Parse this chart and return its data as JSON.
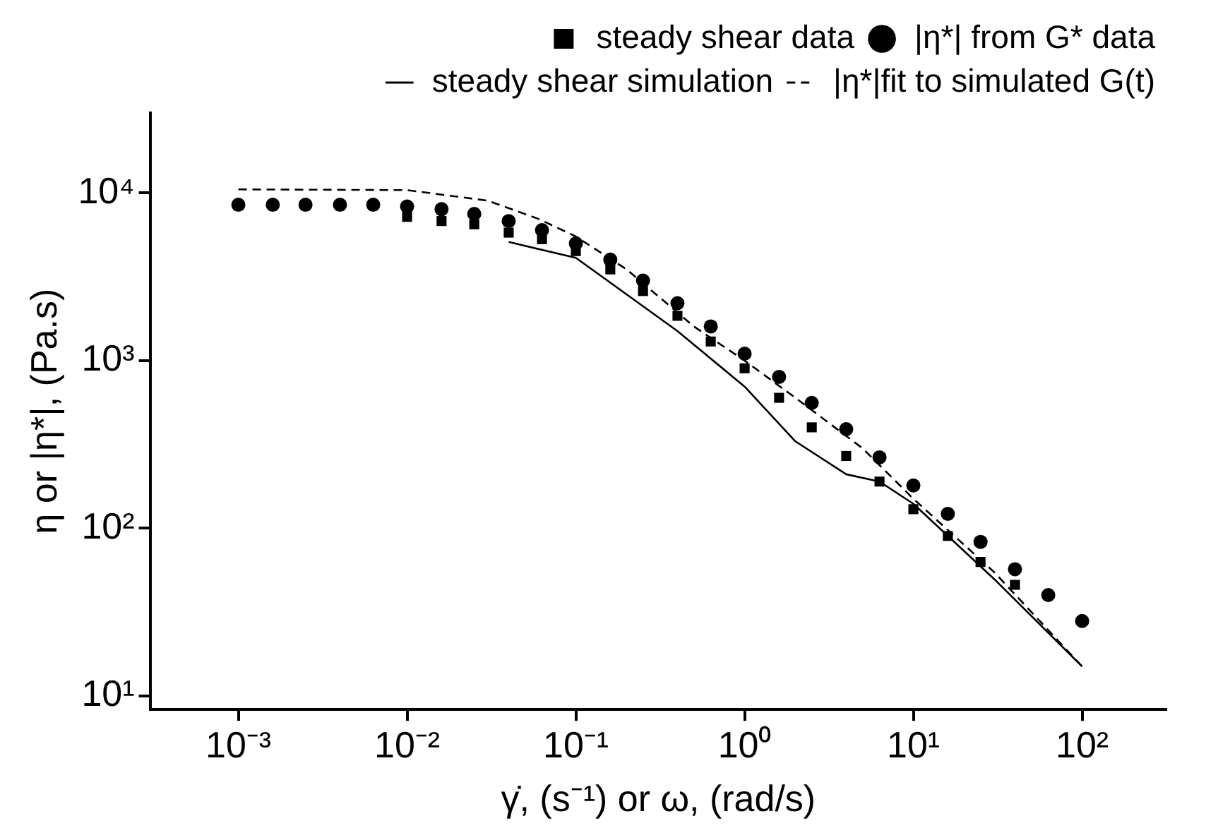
{
  "chart_data": {
    "type": "scatter",
    "xlabel": "γ̇, (s⁻¹) or ω, (rad/s)",
    "ylabel": "η or |η*|, (Pa.s)",
    "log": "xy",
    "grid": false,
    "legend": "top right",
    "xlim": [
      0.000316,
      316
    ],
    "ylim": [
      8.3,
      30000
    ],
    "xticks": [
      {
        "value": 0.001,
        "label": "10⁻³"
      },
      {
        "value": 0.01,
        "label": "10⁻²"
      },
      {
        "value": 0.1,
        "label": "10⁻¹"
      },
      {
        "value": 1,
        "label": "10⁰"
      },
      {
        "value": 10,
        "label": "10¹"
      },
      {
        "value": 100,
        "label": "10²"
      }
    ],
    "yticks": [
      {
        "value": 10,
        "label": "10¹"
      },
      {
        "value": 100,
        "label": "10²"
      },
      {
        "value": 1000,
        "label": "10³"
      },
      {
        "value": 10000,
        "label": "10⁴"
      }
    ],
    "series": [
      {
        "name": "steady shear data",
        "marker": "square",
        "color": "#000000",
        "x": [
          0.01,
          0.016,
          0.025,
          0.04,
          0.063,
          0.1,
          0.16,
          0.25,
          0.4,
          0.63,
          1,
          1.6,
          2.5,
          4,
          6.3,
          10,
          16,
          25,
          40
        ],
        "values": [
          7200,
          6800,
          6500,
          5800,
          5300,
          4500,
          3500,
          2600,
          1850,
          1300,
          900,
          600,
          400,
          270,
          190,
          130,
          90,
          63,
          46
        ]
      },
      {
        "name": "|η*| from G* data",
        "marker": "circle",
        "color": "#000000",
        "x": [
          0.001,
          0.0016,
          0.0025,
          0.004,
          0.0063,
          0.01,
          0.016,
          0.025,
          0.04,
          0.063,
          0.1,
          0.16,
          0.25,
          0.4,
          0.63,
          1,
          1.6,
          2.5,
          4,
          6.3,
          10,
          16,
          25,
          40,
          63,
          100
        ],
        "values": [
          8500,
          8500,
          8500,
          8500,
          8500,
          8300,
          8000,
          7500,
          6800,
          6000,
          5000,
          4000,
          3000,
          2200,
          1600,
          1100,
          800,
          560,
          390,
          265,
          180,
          122,
          83,
          57,
          40,
          28
        ]
      },
      {
        "name": "steady shear simulation",
        "type": "line",
        "marker": "none",
        "line_style": "solid",
        "color": "#000000",
        "x": [
          0.04,
          0.1,
          0.4,
          1,
          2,
          4,
          6.3,
          10,
          30,
          100
        ],
        "values": [
          5100,
          4100,
          1500,
          700,
          330,
          210,
          190,
          140,
          50,
          15
        ]
      },
      {
        "name": "|η*|fit to simulated G(t)",
        "type": "line",
        "marker": "none",
        "line_style": "dashed",
        "color": "#000000",
        "x": [
          0.001,
          0.01,
          0.03,
          0.06,
          0.1,
          0.2,
          0.5,
          1,
          2,
          5,
          10,
          30,
          100
        ],
        "values": [
          10500,
          10400,
          9000,
          7000,
          5500,
          3500,
          1600,
          1000,
          600,
          300,
          150,
          55,
          15
        ]
      }
    ]
  }
}
